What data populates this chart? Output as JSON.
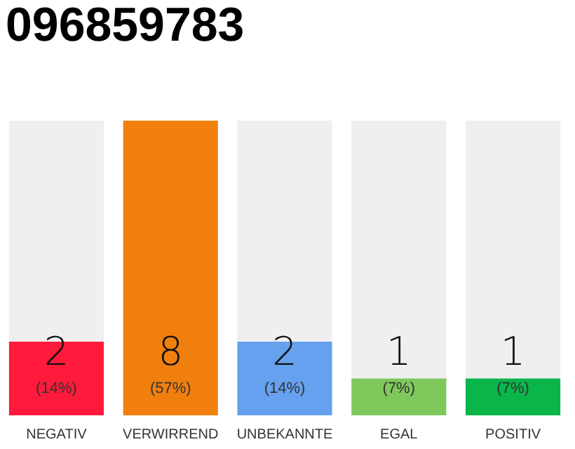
{
  "chart_data": {
    "type": "bar",
    "title": "096859783",
    "categories": [
      "NEGATIV",
      "VERWIRREND",
      "UNBEKANNTE",
      "EGAL",
      "POSITIV"
    ],
    "values": [
      2,
      8,
      2,
      1,
      1
    ],
    "colors": [
      "#ff1a3c",
      "#f07f0e",
      "#66a1ef",
      "#7ec85c",
      "#0ab54a"
    ],
    "data_labels": true,
    "annotations": [
      "(14%)",
      "(57%)",
      "(14%)",
      "(7%)",
      "(7%)"
    ],
    "tick_labels": "x",
    "grid": false
  }
}
